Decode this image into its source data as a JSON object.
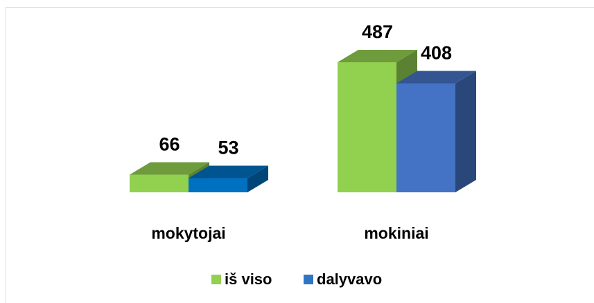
{
  "chart_data": {
    "type": "bar3d",
    "categories": [
      "mokytojai",
      "mokiniai"
    ],
    "series": [
      {
        "name": "iš viso",
        "color": "#92d050",
        "colors": [
          "#92d050",
          "#92d050"
        ],
        "values": [
          66,
          487
        ]
      },
      {
        "name": "dalyvavo",
        "color": "#2f75c4",
        "colors": [
          "#0070c0",
          "#4472c4"
        ],
        "values": [
          53,
          408
        ]
      }
    ],
    "legend": "bottom"
  }
}
